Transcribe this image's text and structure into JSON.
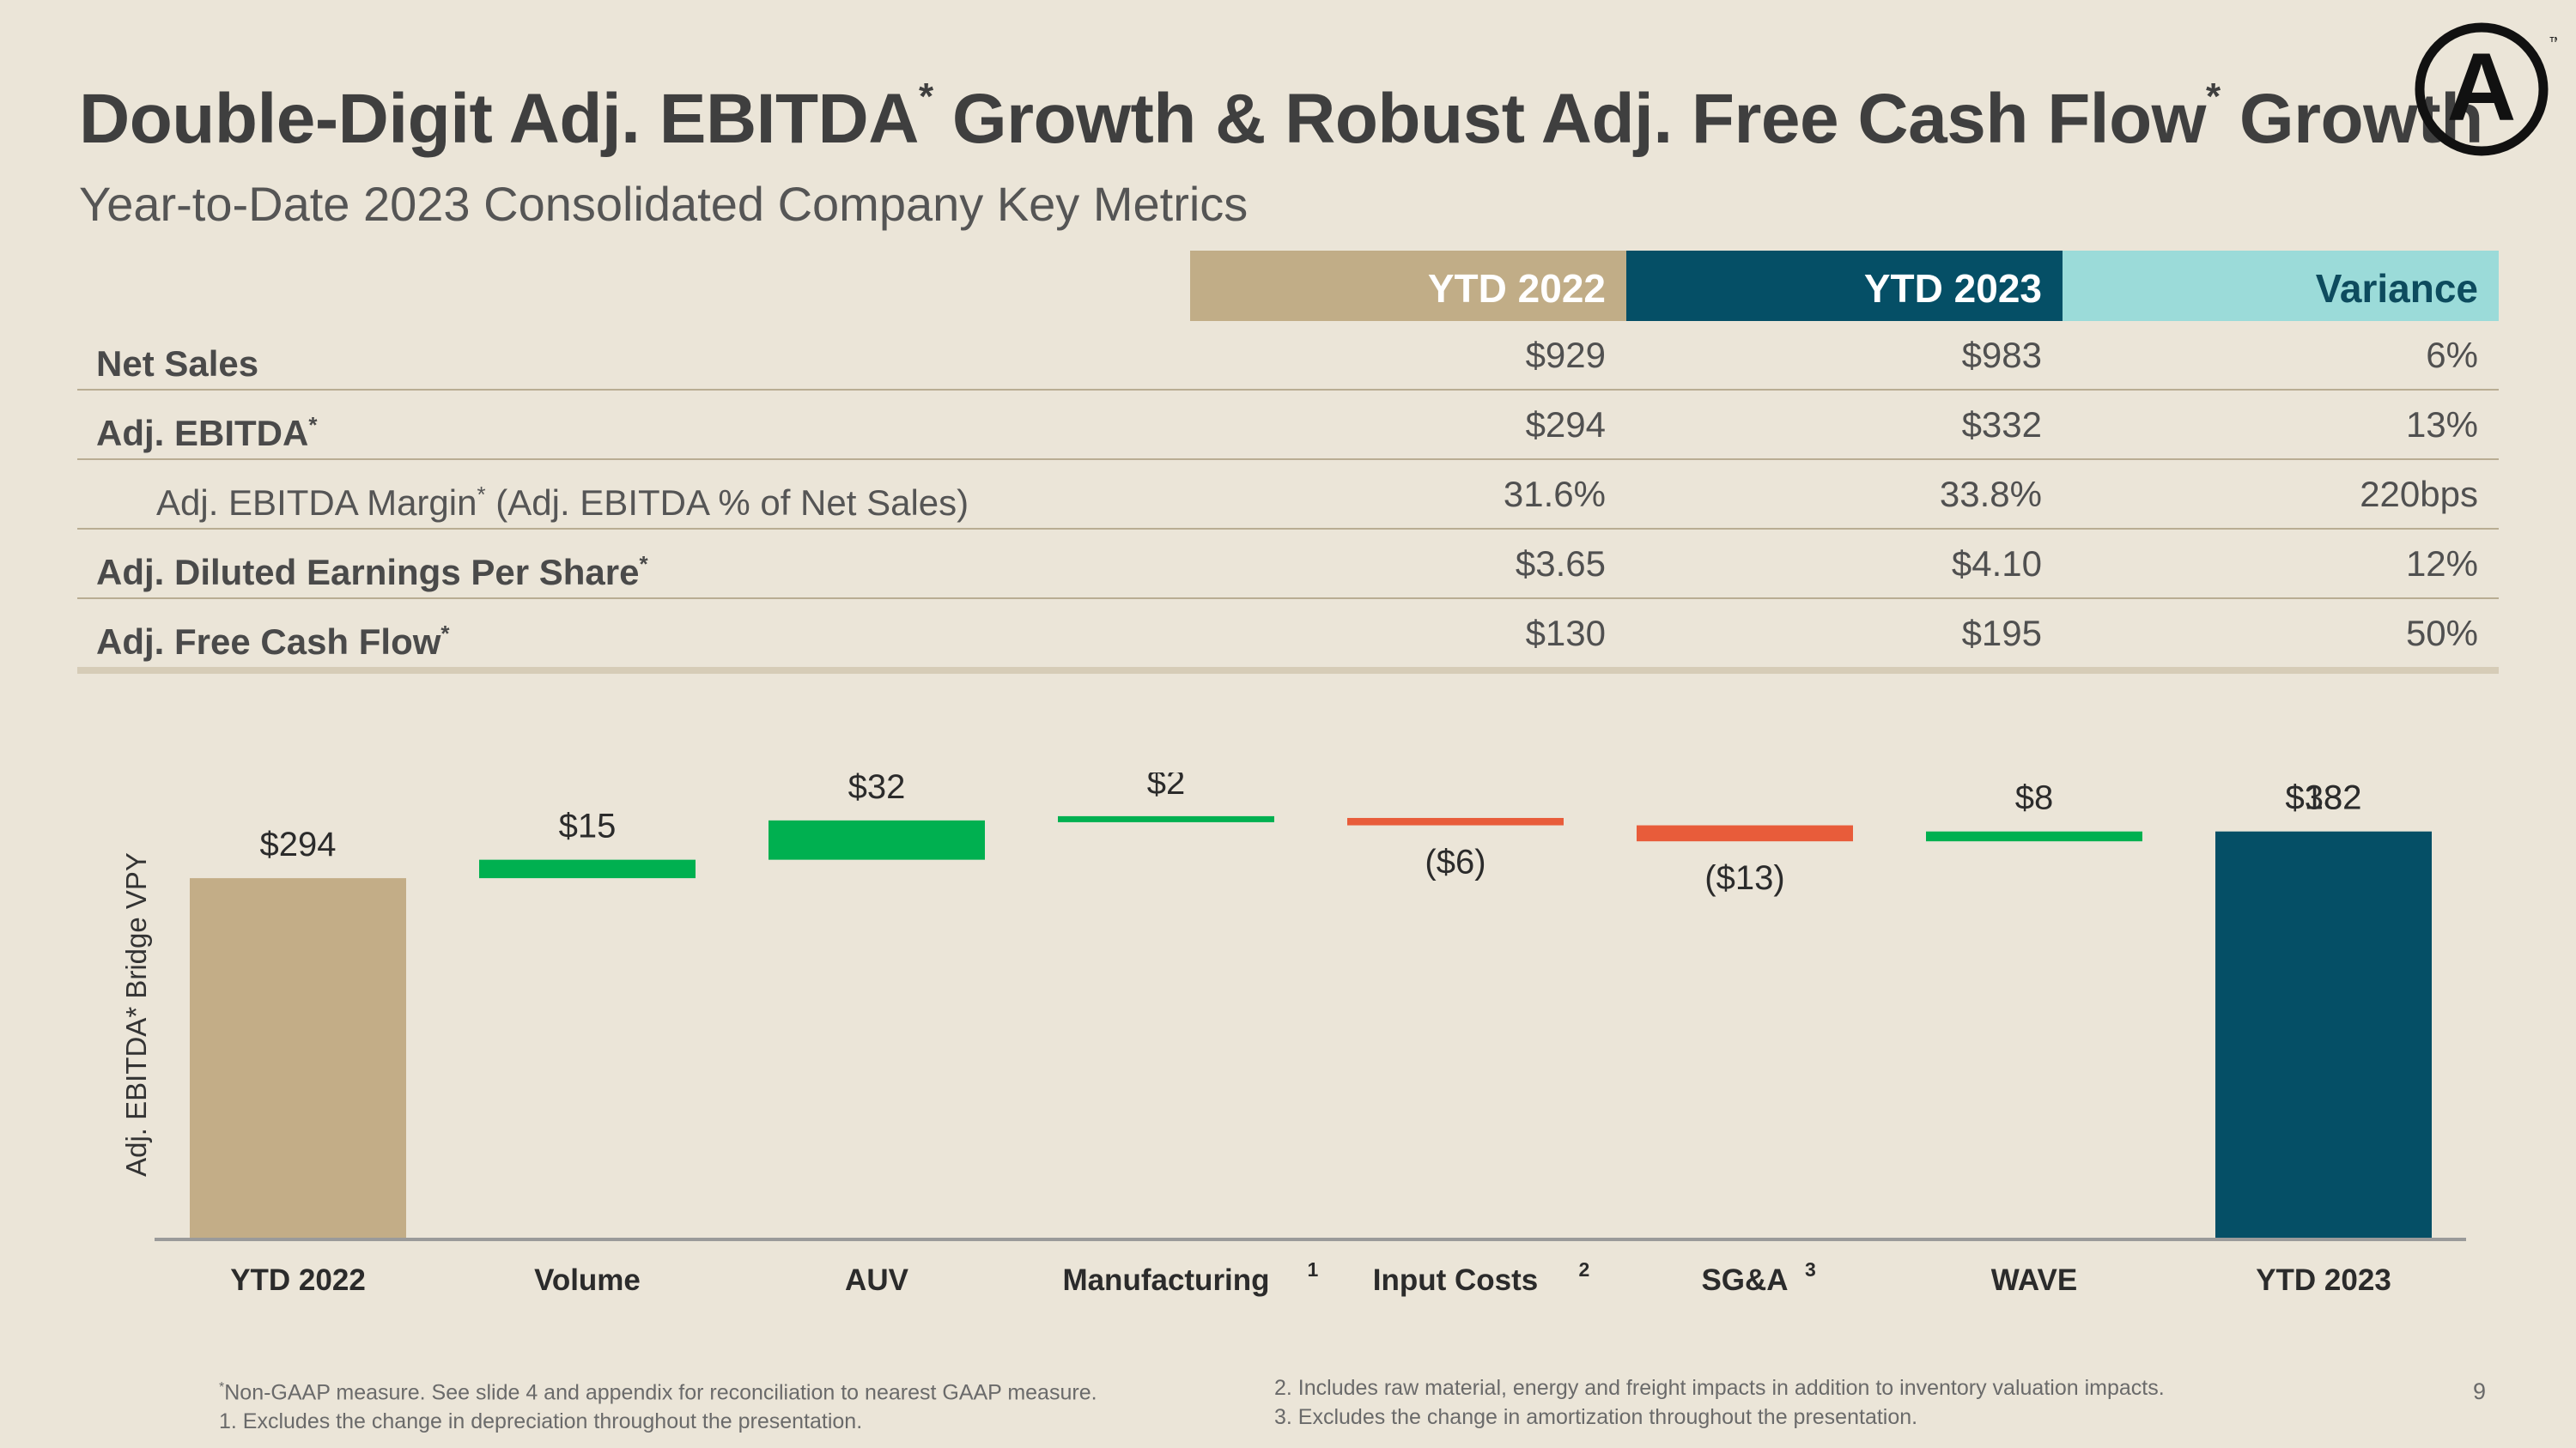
{
  "title": {
    "part1": "Double-Digit Adj. EBITDA",
    "star1": "*",
    "part2": " Growth & Robust Adj. Free Cash Flow",
    "star2": "*",
    "part3": " Growth"
  },
  "subtitle": "Year-to-Date 2023 Consolidated Company Key Metrics",
  "logo": {
    "icon": "letter-a-circle-icon",
    "mark": "A",
    "tm": "™"
  },
  "metrics": {
    "headers": [
      "YTD 2022",
      "YTD 2023",
      "Variance"
    ],
    "rows": [
      {
        "label": "Net Sales",
        "star": "",
        "suffix": "",
        "sub": false,
        "values": [
          "$929",
          "$983",
          "6%"
        ]
      },
      {
        "label": "Adj. EBITDA",
        "star": "*",
        "suffix": "",
        "sub": false,
        "values": [
          "$294",
          "$332",
          "13%"
        ]
      },
      {
        "label": "Adj. EBITDA Margin",
        "star": "*",
        "suffix": " (Adj. EBITDA % of Net Sales)",
        "sub": true,
        "values": [
          "31.6%",
          "33.8%",
          "220bps"
        ]
      },
      {
        "label": "Adj. Diluted Earnings Per Share",
        "star": "*",
        "suffix": "",
        "sub": false,
        "values": [
          "$3.65",
          "$4.10",
          "12%"
        ]
      },
      {
        "label": "Adj. Free Cash Flow",
        "star": "*",
        "suffix": "",
        "sub": false,
        "values": [
          "$130",
          "$195",
          "50%"
        ]
      }
    ]
  },
  "chart_data": {
    "type": "bar",
    "subtype": "waterfall",
    "ylabel": "Adj. EBITDA* Bridge VPY",
    "ylim": [
      0,
      380
    ],
    "categories": [
      "YTD 2022",
      "Volume",
      "AUV",
      "Manufacturing",
      "Input Costs",
      "SG&A",
      "WAVE",
      "YTD 2023"
    ],
    "category_footnotes": [
      "",
      "",
      "",
      "1",
      "2",
      "3",
      "",
      ""
    ],
    "values": [
      294,
      15,
      32,
      2,
      -6,
      -13,
      8,
      332
    ],
    "kinds": [
      "total",
      "delta",
      "delta",
      "delta",
      "delta",
      "delta",
      "delta",
      "total"
    ],
    "value_labels": [
      "$294",
      "$15",
      "$32",
      "$2",
      "($6)",
      "($13)",
      "$8",
      "$332"
    ],
    "overlap_label": "$182",
    "colors": {
      "start": "#c3ad87",
      "end": "#054f66",
      "increase": "#00b050",
      "decrease": "#e85c3a",
      "axis": "#9a9a9a"
    }
  },
  "footnotes": {
    "left": [
      {
        "star": "*",
        "text": "Non-GAAP measure. See slide 4 and appendix for reconciliation to nearest GAAP measure."
      },
      {
        "star": "",
        "text": "1. Excludes the change in depreciation throughout the presentation."
      }
    ],
    "right": [
      {
        "star": "",
        "text": "2. Includes raw material, energy and freight impacts in addition to inventory valuation impacts."
      },
      {
        "star": "",
        "text": "3. Excludes the change in amortization throughout the presentation."
      }
    ]
  },
  "page_number": "9"
}
